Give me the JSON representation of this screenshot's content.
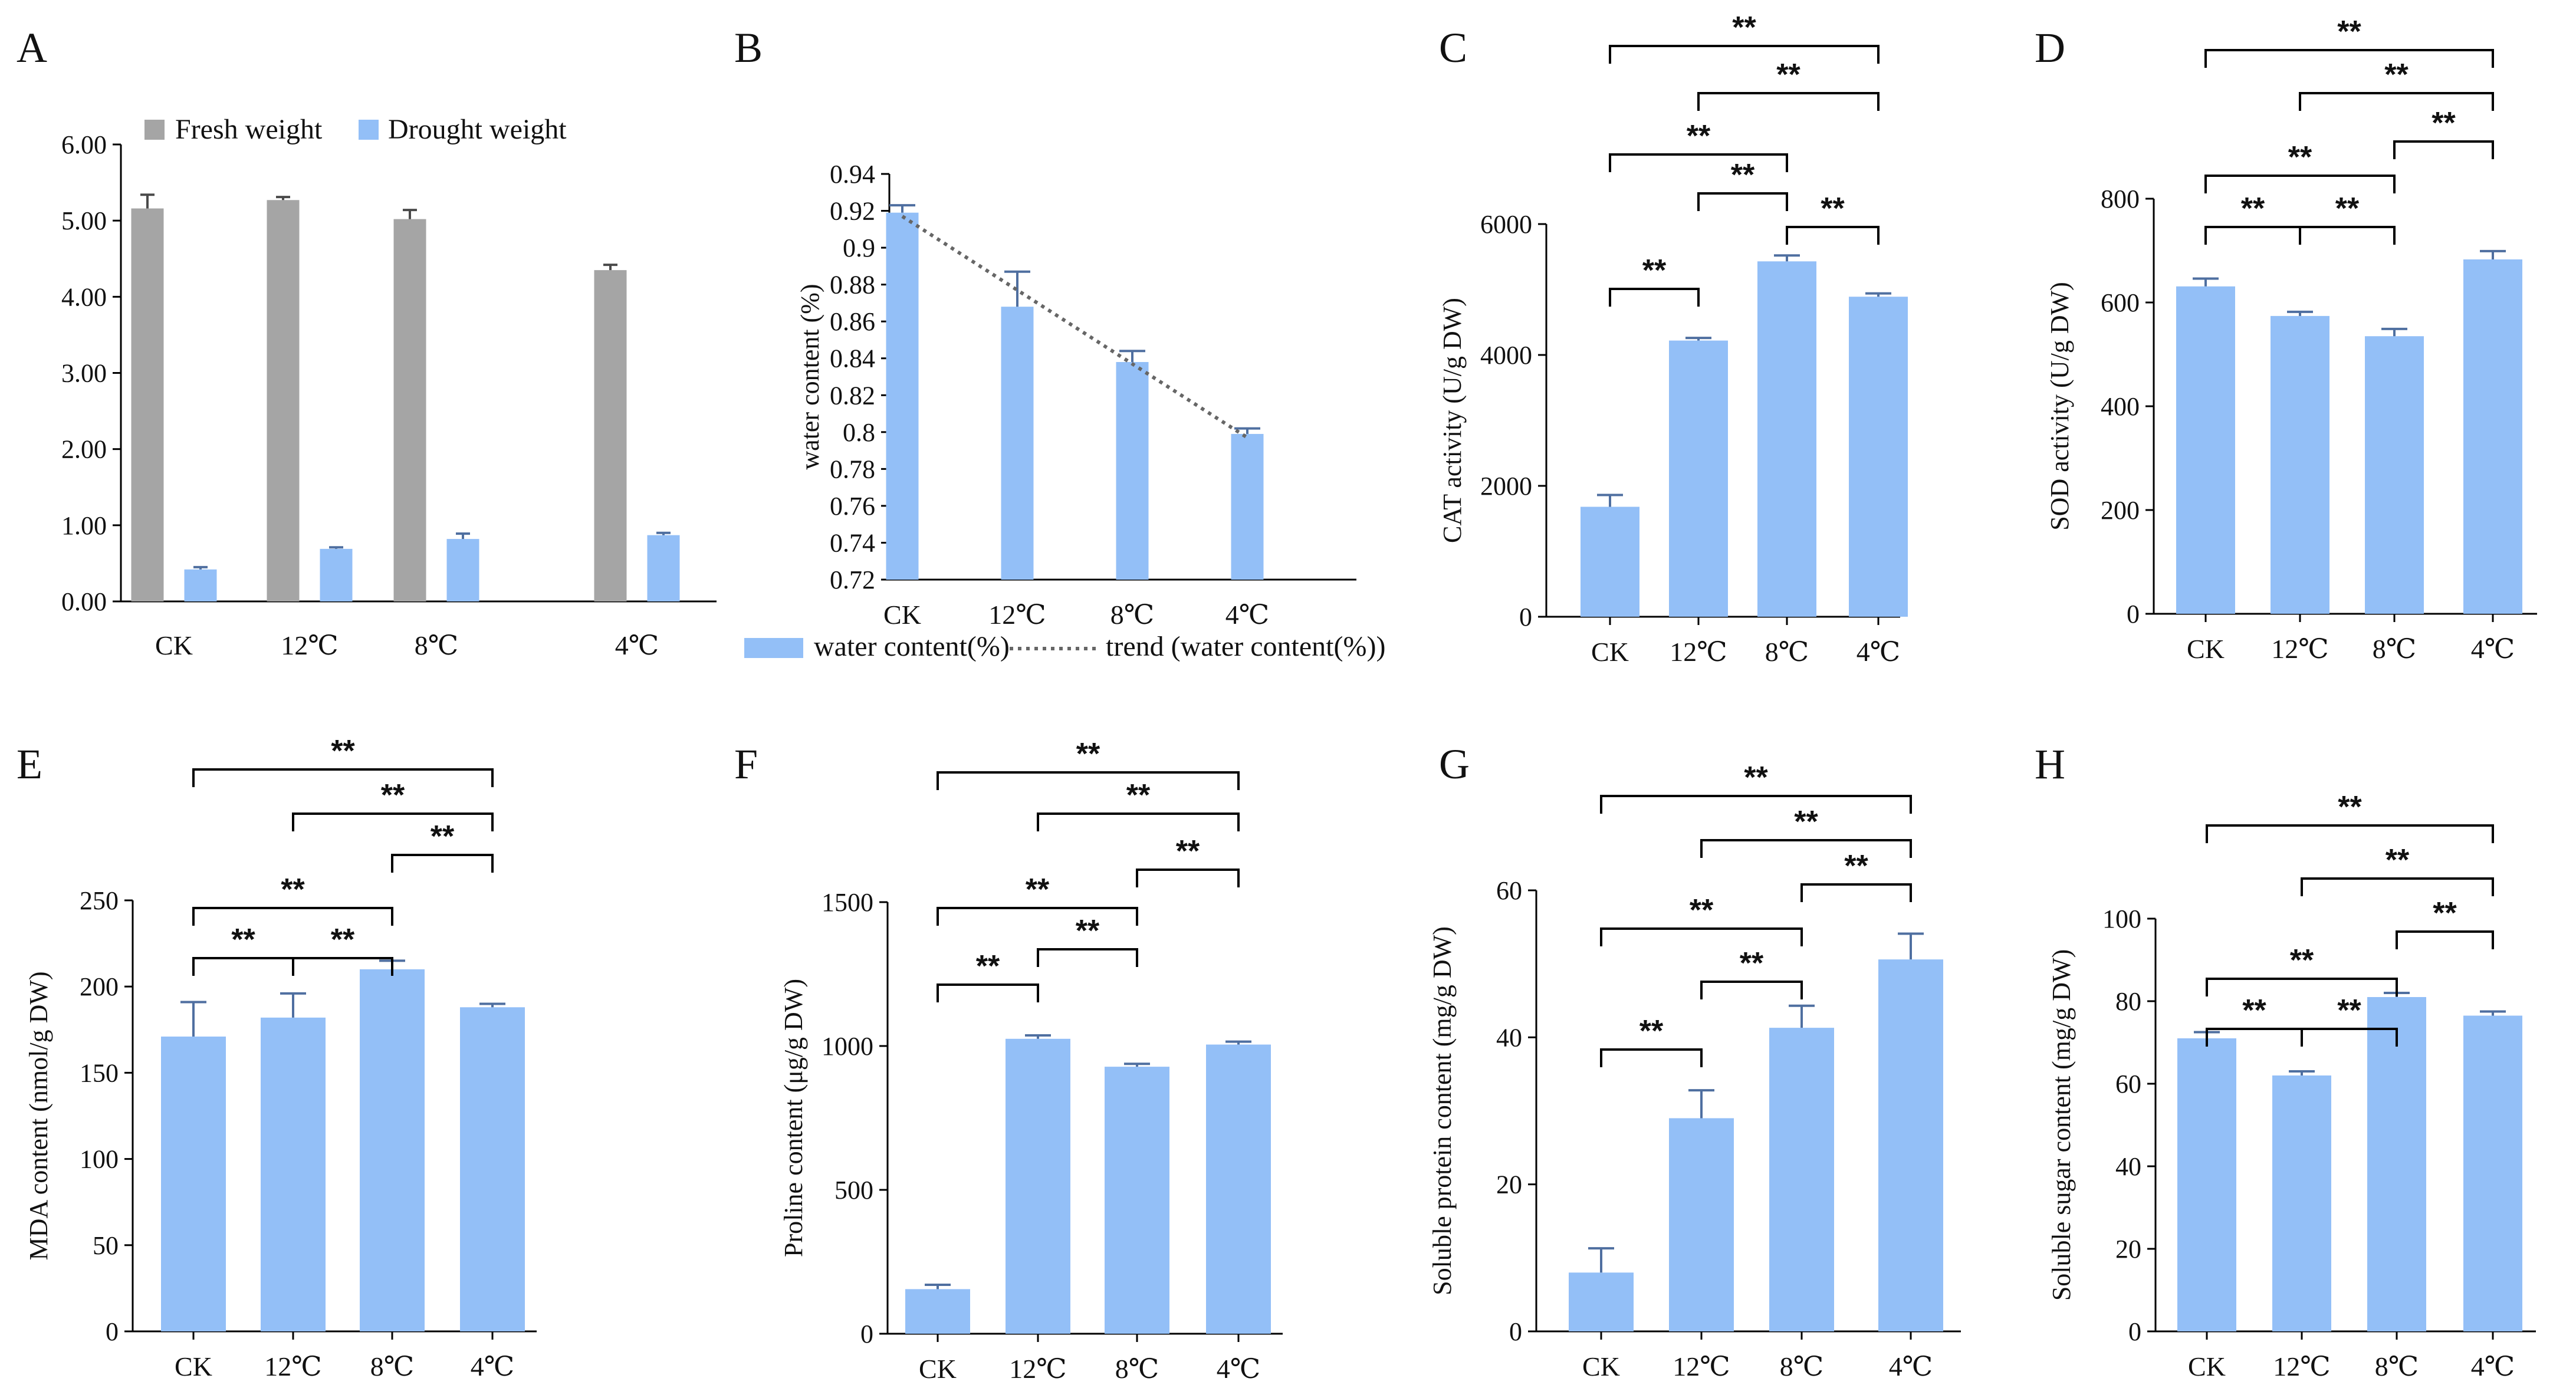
{
  "figure": {
    "panels": [
      "A",
      "B",
      "C",
      "D",
      "E",
      "F",
      "G",
      "H"
    ]
  },
  "colors": {
    "blue": "#93bff7",
    "gray": "#a5a5a5",
    "axis": "#000000",
    "trend": "#666666",
    "errBlue": "#4f6fa0",
    "errGray": "#4a4a4a"
  },
  "chart_data": [
    {
      "id": "A",
      "type": "bar",
      "panel": "A",
      "categories": [
        "CK",
        "12℃",
        "8℃",
        "4℃"
      ],
      "series": [
        {
          "name": "Fresh weight",
          "values": [
            5.16,
            5.27,
            5.02,
            4.35
          ],
          "errors": [
            0.18,
            0.04,
            0.12,
            0.07
          ],
          "color": "gray"
        },
        {
          "name": "Drought weight",
          "values": [
            0.42,
            0.69,
            0.82,
            0.87
          ],
          "errors": [
            0.03,
            0.02,
            0.07,
            0.03
          ],
          "color": "blue"
        }
      ],
      "ylim": [
        0,
        6
      ],
      "ymajor": 1,
      "yticklabels": [
        "0.00",
        "1.00",
        "2.00",
        "3.00",
        "4.00",
        "5.00",
        "6.00"
      ],
      "ylabel": "",
      "xlabel": "",
      "legend": "top"
    },
    {
      "id": "B",
      "type": "bar",
      "panel": "B",
      "categories": [
        "CK",
        "12℃",
        "8℃",
        "4℃"
      ],
      "series": [
        {
          "name": "water content(%)",
          "values": [
            0.919,
            0.868,
            0.838,
            0.799
          ],
          "errors": [
            0.004,
            0.019,
            0.006,
            0.003
          ],
          "color": "blue"
        }
      ],
      "trend": {
        "name": "trend (water content(%))",
        "from": 0.917,
        "to": 0.797
      },
      "ylim": [
        0.72,
        0.94
      ],
      "ymajor": 0.02,
      "yticklabels": [
        "0.72",
        "0.74",
        "0.76",
        "0.78",
        "0.8",
        "0.82",
        "0.84",
        "0.86",
        "0.88",
        "0.9",
        "0.92",
        "0.94"
      ],
      "ylabel": "water content (%)",
      "legend": "bottom"
    },
    {
      "id": "C",
      "type": "bar",
      "panel": "C",
      "categories": [
        "CK",
        "12℃",
        "8℃",
        "4℃"
      ],
      "series": [
        {
          "name": "CAT",
          "values": [
            1680,
            4220,
            5430,
            4890
          ],
          "errors": [
            180,
            40,
            90,
            50
          ],
          "color": "blue"
        }
      ],
      "ylim": [
        0,
        6000
      ],
      "ymajor": 2000,
      "yticklabels": [
        "0",
        "2000",
        "4000",
        "6000"
      ],
      "ylabel": "CAT activity (U/g DW)",
      "significance": [
        {
          "a": 0,
          "b": 1,
          "level": 1,
          "label": "**"
        },
        {
          "a": 2,
          "b": 3,
          "level": 2,
          "label": "**"
        },
        {
          "a": 1,
          "b": 2,
          "level": 3,
          "label": "**"
        },
        {
          "a": 0,
          "b": 2,
          "level": 4,
          "label": "**"
        },
        {
          "a": 1,
          "b": 3,
          "level": 5,
          "label": "**"
        },
        {
          "a": 0,
          "b": 3,
          "level": 6,
          "label": "**"
        }
      ]
    },
    {
      "id": "D",
      "type": "bar",
      "panel": "D",
      "categories": [
        "CK",
        "12℃",
        "8℃",
        "4℃"
      ],
      "series": [
        {
          "name": "SOD",
          "values": [
            631,
            574,
            535,
            683
          ],
          "errors": [
            15,
            8,
            14,
            16
          ],
          "color": "blue"
        }
      ],
      "ylim": [
        0,
        800
      ],
      "ymajor": 200,
      "yticklabels": [
        "0",
        "200",
        "400",
        "600",
        "800"
      ],
      "ylabel": "SOD activity (U/g DW)",
      "significance": [
        {
          "a": 0,
          "b": 1,
          "level": 1,
          "label": "**"
        },
        {
          "a": 1,
          "b": 2,
          "level": 1,
          "label": "**"
        },
        {
          "a": 0,
          "b": 2,
          "level": 2,
          "label": "**"
        },
        {
          "a": 2,
          "b": 3,
          "level": 3,
          "label": "**"
        },
        {
          "a": 1,
          "b": 3,
          "level": 4,
          "label": "**"
        },
        {
          "a": 0,
          "b": 3,
          "level": 5,
          "label": "**"
        }
      ]
    },
    {
      "id": "E",
      "type": "bar",
      "panel": "E",
      "categories": [
        "CK",
        "12℃",
        "8℃",
        "4℃"
      ],
      "series": [
        {
          "name": "MDA",
          "values": [
            171,
            182,
            210,
            188
          ],
          "errors": [
            20,
            14,
            5,
            2
          ],
          "color": "blue"
        }
      ],
      "ylim": [
        0,
        250
      ],
      "ymajor": 50,
      "yticklabels": [
        "0",
        "50",
        "100",
        "150",
        "200",
        "250"
      ],
      "ylabel": "MDA content (nmol/g DW)",
      "significance": [
        {
          "a": 0,
          "b": 1,
          "level": 1,
          "label": "**"
        },
        {
          "a": 1,
          "b": 2,
          "level": 1,
          "label": "**"
        },
        {
          "a": 0,
          "b": 2,
          "level": 2,
          "label": "**"
        },
        {
          "a": 2,
          "b": 3,
          "level": 3,
          "label": "**"
        },
        {
          "a": 1,
          "b": 3,
          "level": 4,
          "label": "**"
        },
        {
          "a": 0,
          "b": 3,
          "level": 5,
          "label": "**"
        }
      ]
    },
    {
      "id": "F",
      "type": "bar",
      "panel": "F",
      "categories": [
        "CK",
        "12℃",
        "8℃",
        "4℃"
      ],
      "series": [
        {
          "name": "Proline",
          "values": [
            155,
            1025,
            928,
            1005
          ],
          "errors": [
            15,
            12,
            10,
            10
          ],
          "color": "blue"
        }
      ],
      "ylim": [
        0,
        1500
      ],
      "ymajor": 500,
      "yticklabels": [
        "0",
        "500",
        "1000",
        "1500"
      ],
      "ylabel": "Proline content (μg/g DW)",
      "significance": [
        {
          "a": 0,
          "b": 1,
          "level": 1,
          "label": "**"
        },
        {
          "a": 1,
          "b": 2,
          "level": 2,
          "label": "**"
        },
        {
          "a": 0,
          "b": 2,
          "level": 3,
          "label": "**"
        },
        {
          "a": 2,
          "b": 3,
          "level": 4,
          "label": "**"
        },
        {
          "a": 1,
          "b": 3,
          "level": 5,
          "label": "**"
        },
        {
          "a": 0,
          "b": 3,
          "level": 6,
          "label": "**"
        }
      ]
    },
    {
      "id": "G",
      "type": "bar",
      "panel": "G",
      "categories": [
        "CK",
        "12℃",
        "8℃",
        "4℃"
      ],
      "series": [
        {
          "name": "Soluble protein",
          "values": [
            8,
            29,
            41.3,
            50.6
          ],
          "errors": [
            3.3,
            3.8,
            3,
            3.5
          ],
          "color": "blue"
        }
      ],
      "ylim": [
        0,
        60
      ],
      "ymajor": 20,
      "yticklabels": [
        "0",
        "20",
        "40",
        "60"
      ],
      "ylabel": "Soluble protein content (mg/g DW)",
      "significance": [
        {
          "a": 0,
          "b": 1,
          "level": 1,
          "label": "**"
        },
        {
          "a": 1,
          "b": 2,
          "level": 2,
          "label": "**"
        },
        {
          "a": 0,
          "b": 2,
          "level": 3,
          "label": "**"
        },
        {
          "a": 2,
          "b": 3,
          "level": 4,
          "label": "**"
        },
        {
          "a": 1,
          "b": 3,
          "level": 5,
          "label": "**"
        },
        {
          "a": 0,
          "b": 3,
          "level": 6,
          "label": "**"
        }
      ]
    },
    {
      "id": "H",
      "type": "bar",
      "panel": "H",
      "categories": [
        "CK",
        "12℃",
        "8℃",
        "4℃"
      ],
      "series": [
        {
          "name": "Soluble sugar",
          "values": [
            71,
            62,
            81,
            76.5
          ],
          "errors": [
            1.5,
            1,
            1,
            1
          ],
          "color": "blue"
        }
      ],
      "ylim": [
        0,
        100
      ],
      "ymajor": 20,
      "yticklabels": [
        "0",
        "20",
        "40",
        "60",
        "80",
        "100"
      ],
      "ylabel": "Soluble sugar content (mg/g DW)",
      "significance": [
        {
          "a": 0,
          "b": 1,
          "level": 1,
          "label": "**"
        },
        {
          "a": 1,
          "b": 2,
          "level": 1,
          "label": "**"
        },
        {
          "a": 0,
          "b": 2,
          "level": 2,
          "label": "**"
        },
        {
          "a": 2,
          "b": 3,
          "level": 3,
          "label": "**"
        },
        {
          "a": 1,
          "b": 3,
          "level": 4,
          "label": "**"
        },
        {
          "a": 0,
          "b": 3,
          "level": 5,
          "label": "**"
        }
      ]
    }
  ]
}
